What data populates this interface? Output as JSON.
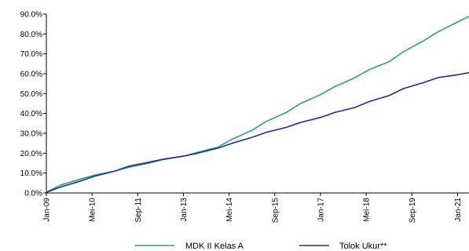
{
  "chart_data": {
    "type": "line",
    "title": "",
    "xlabel": "",
    "ylabel": "",
    "ylim": [
      0,
      90
    ],
    "y_ticks": [
      "0.0%",
      "10.0%",
      "20.0%",
      "30.0%",
      "40.0%",
      "50.0%",
      "60.0%",
      "70.0%",
      "80.0%",
      "90.0%"
    ],
    "x_range": [
      "2009-01",
      "2021-05"
    ],
    "x_ticks": [
      {
        "label": "Jan-09",
        "date": "2009-01"
      },
      {
        "label": "Mei-10",
        "date": "2010-05"
      },
      {
        "label": "Sep-11",
        "date": "2011-09"
      },
      {
        "label": "Jan-13",
        "date": "2013-01"
      },
      {
        "label": "Mei-14",
        "date": "2014-05"
      },
      {
        "label": "Sep-15",
        "date": "2015-09"
      },
      {
        "label": "Jan-17",
        "date": "2017-01"
      },
      {
        "label": "Mei-18",
        "date": "2018-05"
      },
      {
        "label": "Sep-19",
        "date": "2019-09"
      },
      {
        "label": "Jan-21",
        "date": "2021-01"
      }
    ],
    "grid": false,
    "legend_position": "bottom",
    "series": [
      {
        "name": "MDK II Kelas A",
        "color": "#22a86b",
        "x": [
          "2009-01",
          "2009-06",
          "2010-01",
          "2010-06",
          "2011-01",
          "2011-06",
          "2012-01",
          "2012-06",
          "2013-01",
          "2013-06",
          "2014-01",
          "2014-06",
          "2015-01",
          "2015-06",
          "2016-01",
          "2016-06",
          "2017-01",
          "2017-06",
          "2018-01",
          "2018-06",
          "2019-01",
          "2019-06",
          "2020-01",
          "2020-06",
          "2021-01",
          "2021-05"
        ],
        "values": [
          0.3,
          4.0,
          7.0,
          9.0,
          11.0,
          13.0,
          15.0,
          16.8,
          18.5,
          20.5,
          23.0,
          27.0,
          31.5,
          36.0,
          40.5,
          45.0,
          49.5,
          53.5,
          58.0,
          62.0,
          66.0,
          71.0,
          76.5,
          81.0,
          86.0,
          88.8
        ]
      },
      {
        "name": "Tolok Ukur**",
        "color": "#1f2ea0",
        "x": [
          "2009-01",
          "2009-06",
          "2010-01",
          "2010-06",
          "2011-01",
          "2011-06",
          "2012-01",
          "2012-06",
          "2013-01",
          "2013-06",
          "2014-01",
          "2014-06",
          "2015-01",
          "2015-06",
          "2016-01",
          "2016-06",
          "2017-01",
          "2017-06",
          "2018-01",
          "2018-06",
          "2019-01",
          "2019-06",
          "2020-01",
          "2020-06",
          "2021-01",
          "2021-05"
        ],
        "values": [
          0.3,
          3.0,
          6.0,
          8.5,
          11.0,
          13.5,
          15.5,
          17.0,
          18.5,
          20.0,
          22.5,
          25.0,
          28.0,
          30.5,
          33.0,
          35.5,
          38.0,
          40.5,
          43.0,
          46.0,
          49.0,
          52.5,
          55.5,
          58.0,
          59.5,
          60.5
        ]
      }
    ]
  }
}
